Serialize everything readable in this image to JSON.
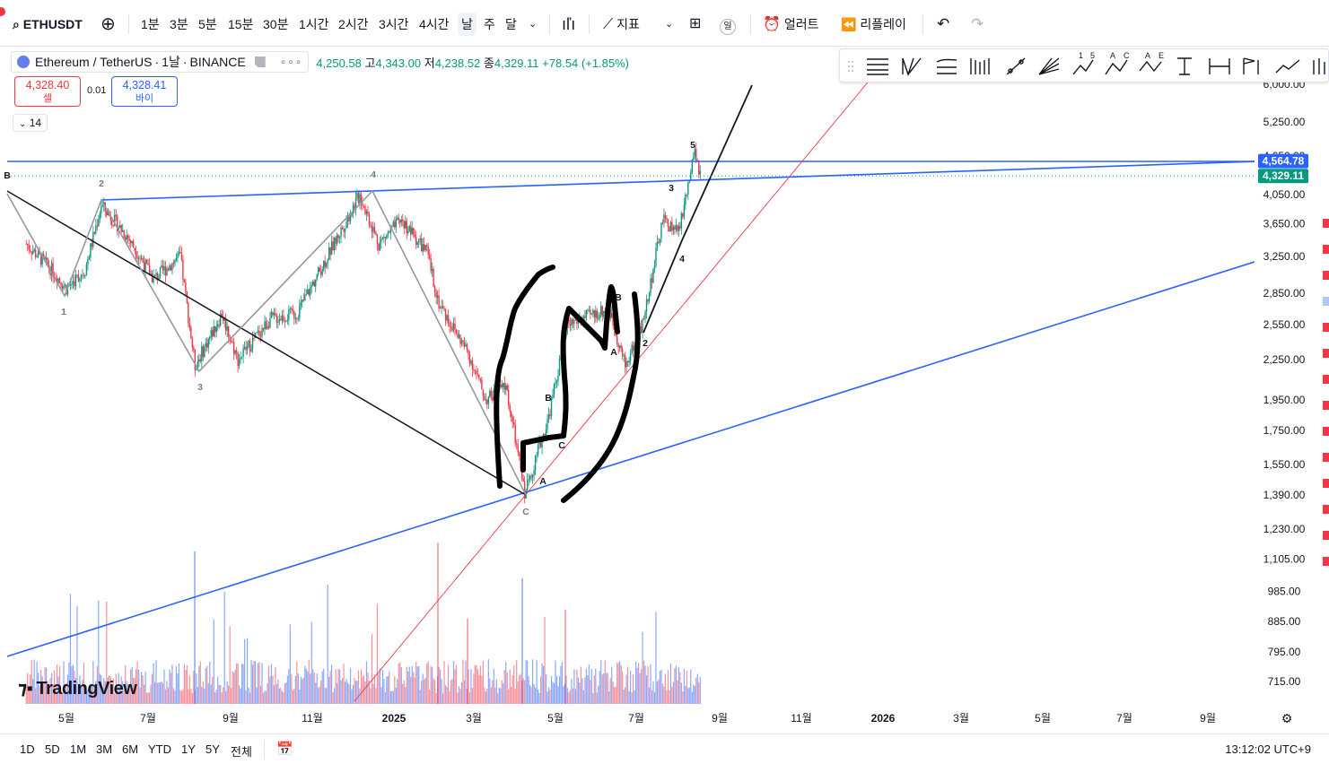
{
  "toolbar": {
    "symbol": "ETHUSDT",
    "intervals": [
      "1분",
      "3분",
      "5분",
      "15분",
      "30분",
      "1시간",
      "2시간",
      "3시간",
      "4시간",
      "날",
      "주",
      "달"
    ],
    "active_interval": "날",
    "indicators_label": "지표",
    "layout_badge": "일",
    "alert_label": "얼러트",
    "replay_label": "리플레이"
  },
  "legend": {
    "pair": "Ethereum / TetherUS",
    "interval": "1날",
    "exchange": "BINANCE",
    "open": "4,250.58",
    "high_label": "고",
    "high": "4,343.00",
    "low_label": "저",
    "low": "4,238.52",
    "close_label": "종",
    "close": "4,329.11",
    "change": "+78.54 (+1.85%)"
  },
  "trade": {
    "sell_price": "4,328.40",
    "sell_label": "셀",
    "spread": "0.01",
    "buy_price": "4,328.41",
    "buy_label": "바이"
  },
  "collapse_count": "14",
  "colors": {
    "up": "#089981",
    "down": "#f23645",
    "trendline_blue": "#2962ff",
    "ellipse_label": "#787b86"
  },
  "chart_data": {
    "type": "candlestick",
    "y_scale": "log",
    "price_ticks": [
      "6,000.00",
      "5,250.00",
      "4,650.00",
      "4,050.00",
      "3,650.00",
      "3,250.00",
      "2,850.00",
      "2,550.00",
      "2,250.00",
      "1,950.00",
      "1,750.00",
      "1,550.00",
      "1,390.00",
      "1,230.00",
      "1,105.00",
      "985.00",
      "885.00",
      "795.00",
      "715.00"
    ],
    "price_tick_values": [
      6000,
      5250,
      4650,
      4050,
      3650,
      3250,
      2850,
      2550,
      2250,
      1950,
      1750,
      1550,
      1390,
      1230,
      1105,
      985,
      885,
      795,
      715
    ],
    "ylim": [
      660,
      6300
    ],
    "time_labels": [
      "5월",
      "7월",
      "9월",
      "11월",
      "2025",
      "3월",
      "5월",
      "7월",
      "9월",
      "11월",
      "2026",
      "3월",
      "5월",
      "7월",
      "9월"
    ],
    "price_path": [
      [
        "2024-04-01",
        3400
      ],
      [
        "2024-04-20",
        3100
      ],
      [
        "2024-05-01",
        2900
      ],
      [
        "2024-05-15",
        3100
      ],
      [
        "2024-05-27",
        3900
      ],
      [
        "2024-06-15",
        3500
      ],
      [
        "2024-07-05",
        3000
      ],
      [
        "2024-07-25",
        3250
      ],
      [
        "2024-08-05",
        2200
      ],
      [
        "2024-08-25",
        2650
      ],
      [
        "2024-09-06",
        2250
      ],
      [
        "2024-09-30",
        2600
      ],
      [
        "2024-10-20",
        2650
      ],
      [
        "2024-11-10",
        3200
      ],
      [
        "2024-12-06",
        4050
      ],
      [
        "2024-12-20",
        3400
      ],
      [
        "2025-01-06",
        3700
      ],
      [
        "2025-01-25",
        3300
      ],
      [
        "2025-02-03",
        2750
      ],
      [
        "2025-02-25",
        2300
      ],
      [
        "2025-03-10",
        1950
      ],
      [
        "2025-03-25",
        2050
      ],
      [
        "2025-04-08",
        1400
      ],
      [
        "2025-04-25",
        1800
      ],
      [
        "2025-05-10",
        2550
      ],
      [
        "2025-06-10",
        2700
      ],
      [
        "2025-06-22",
        2200
      ],
      [
        "2025-07-05",
        2550
      ],
      [
        "2025-07-20",
        3700
      ],
      [
        "2025-08-01",
        3550
      ],
      [
        "2025-08-13",
        4700
      ],
      [
        "2025-08-17",
        4329.11
      ]
    ],
    "last_price": "4,329.11",
    "marker_price": "4,564.78",
    "wave_labels": [
      "B",
      "2",
      "1",
      "3",
      "4",
      "C",
      "A",
      "B",
      "C",
      "A",
      "B",
      "2",
      "3",
      "4",
      "5"
    ]
  },
  "watermark": "TradingView",
  "timeframes": [
    "1D",
    "5D",
    "1M",
    "3M",
    "6M",
    "YTD",
    "1Y",
    "5Y",
    "전체"
  ],
  "clock": "13:12:02 UTC+9"
}
